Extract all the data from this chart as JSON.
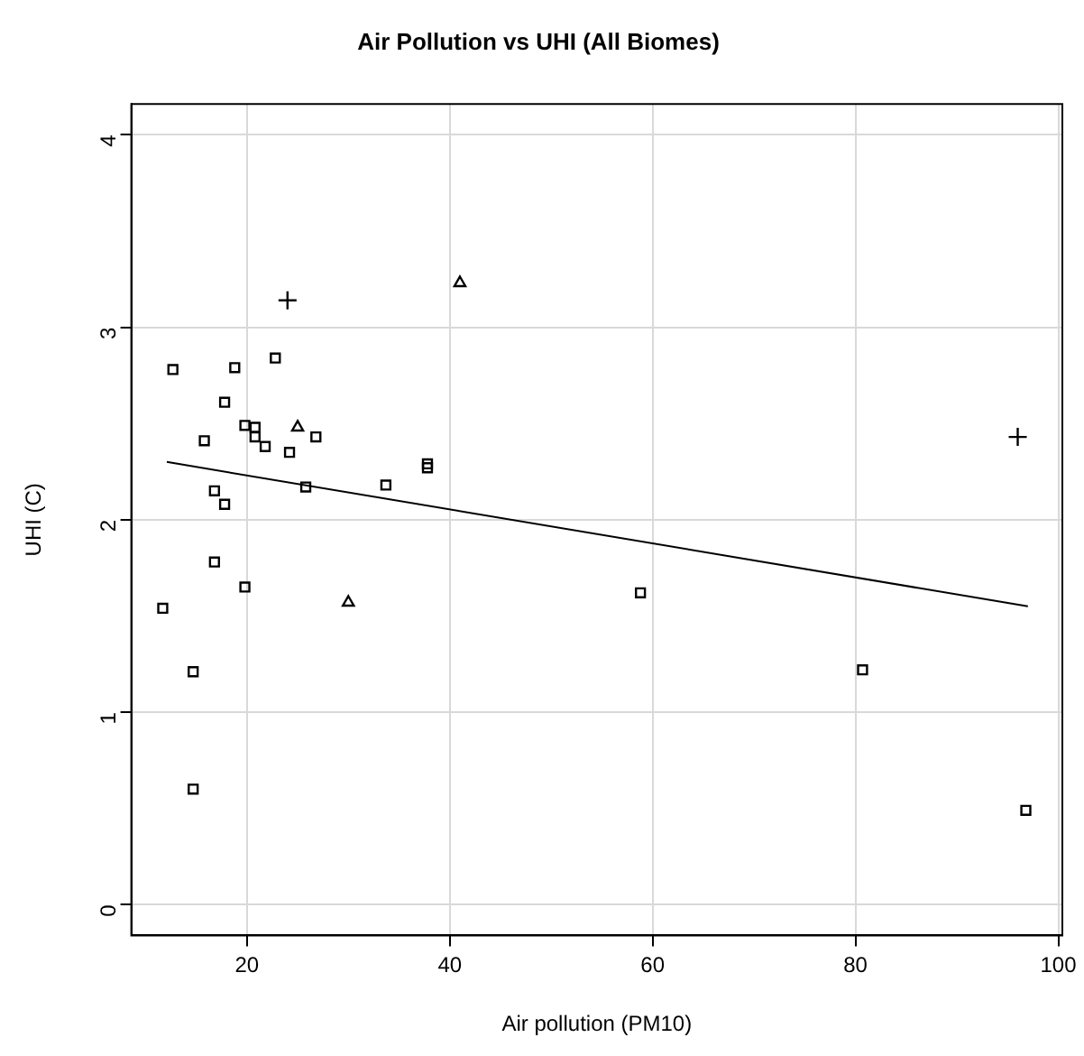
{
  "chart_data": {
    "type": "scatter",
    "title": "Air Pollution vs UHI (All Biomes)",
    "xlabel": "Air pollution (PM10)",
    "ylabel": "UHI (C)",
    "xlim": [
      8.6,
      100.4
    ],
    "xticks": [
      20,
      40,
      60,
      80,
      100
    ],
    "ylim": [
      -0.16,
      4.16
    ],
    "yticks": [
      0,
      1,
      2,
      3,
      4
    ],
    "grid": true,
    "legend": false,
    "series": [
      {
        "type": "scatter",
        "marker": "square",
        "color": "#000000",
        "x": [
          11.7,
          12.7,
          14.7,
          14.7,
          15.8,
          16.8,
          16.8,
          17.8,
          17.8,
          18.8,
          19.8,
          19.8,
          20.8,
          20.8,
          21.8,
          22.8,
          24.2,
          25.8,
          26.8,
          33.7,
          37.8,
          37.8,
          58.8,
          80.7,
          96.8
        ],
        "values": [
          1.54,
          2.78,
          1.21,
          0.6,
          2.41,
          2.15,
          1.78,
          2.61,
          2.08,
          2.79,
          2.49,
          1.65,
          2.48,
          2.43,
          2.38,
          2.84,
          2.35,
          2.17,
          2.43,
          2.18,
          2.29,
          2.27,
          1.62,
          1.22,
          0.49
        ]
      },
      {
        "type": "scatter",
        "marker": "triangle",
        "color": "#000000",
        "x": [
          25.0,
          30.0,
          41.0
        ],
        "values": [
          2.48,
          1.57,
          3.23
        ]
      },
      {
        "type": "scatter",
        "marker": "cross",
        "color": "#000000",
        "x": [
          24.0,
          96.0
        ],
        "values": [
          3.14,
          2.43
        ]
      },
      {
        "type": "line",
        "marker": "none",
        "color": "#000000",
        "x": [
          12.1,
          97.0
        ],
        "values": [
          2.3,
          1.55
        ]
      }
    ]
  }
}
